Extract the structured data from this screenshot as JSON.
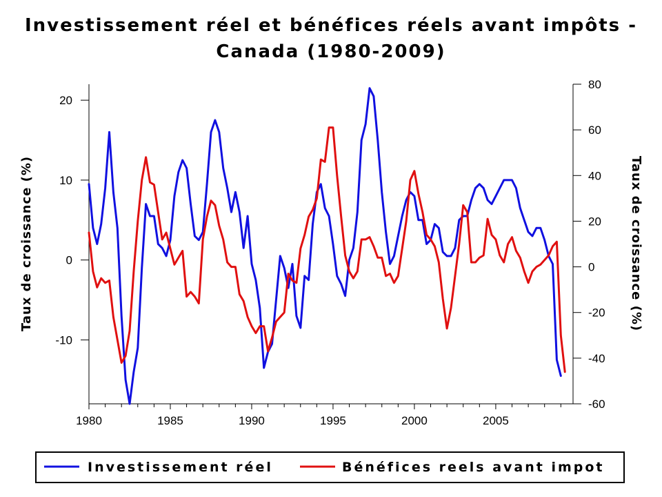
{
  "title_line1": "Investissement réel et bénéfices réels avant impôts -",
  "title_line2": "Canada (1980-2009)",
  "colors": {
    "series1": "#1010e0",
    "series2": "#e01010",
    "axis": "#000000"
  },
  "chart_data": {
    "type": "line",
    "title": "Investissement réel et bénéfices réels avant impôts - Canada (1980-2009)",
    "xlabel": "",
    "ylabel_left": "Taux de croissance (%)",
    "ylabel_right": "Taux de croissance (%)",
    "xlim": [
      1980,
      2009.75
    ],
    "ylim_left": [
      -18,
      22
    ],
    "ylim_right": [
      -60,
      80
    ],
    "x_ticks": [
      1980,
      1985,
      1990,
      1995,
      2000,
      2005
    ],
    "y_ticks_left": [
      -10,
      0,
      10,
      20
    ],
    "y_ticks_right": [
      -60,
      -40,
      -20,
      0,
      20,
      40,
      60,
      80
    ],
    "legend_position": "bottom",
    "grid": false,
    "series": [
      {
        "name": "Investissement réel",
        "axis": "left",
        "x_start": 1980.0,
        "x_step": 0.25,
        "values": [
          9.5,
          4.0,
          2.0,
          4.5,
          9.0,
          16.0,
          8.5,
          4.0,
          -7.0,
          -15.0,
          -18.0,
          -14.0,
          -11.0,
          -1.0,
          7.0,
          5.5,
          5.5,
          2.0,
          1.5,
          0.5,
          2.5,
          8.0,
          11.0,
          12.5,
          11.5,
          7.0,
          3.0,
          2.5,
          3.5,
          9.5,
          16.0,
          17.5,
          16.0,
          11.5,
          9.0,
          6.0,
          8.5,
          6.0,
          1.5,
          5.5,
          -0.5,
          -2.5,
          -6.0,
          -13.5,
          -11.5,
          -10.5,
          -5.0,
          0.5,
          -1.0,
          -3.5,
          -0.5,
          -7.0,
          -8.5,
          -2.0,
          -2.5,
          4.5,
          8.5,
          9.5,
          6.5,
          5.5,
          2.0,
          -2.0,
          -3.0,
          -4.5,
          0.0,
          1.5,
          6.0,
          15.0,
          17.0,
          21.5,
          20.5,
          15.0,
          8.5,
          3.5,
          -0.5,
          0.5,
          3.0,
          5.5,
          7.5,
          8.5,
          8.0,
          5.0,
          5.0,
          2.0,
          2.5,
          4.5,
          4.0,
          1.0,
          0.5,
          0.5,
          1.5,
          5.0,
          5.5,
          5.5,
          7.5,
          9.0,
          9.5,
          9.0,
          7.5,
          7.0,
          8.0,
          9.0,
          10.0,
          10.0,
          10.0,
          9.0,
          6.5,
          5.0,
          3.5,
          3.0,
          4.0,
          4.0,
          2.5,
          0.5,
          -0.5,
          -12.5,
          -14.5
        ]
      },
      {
        "name": "Bénéfices reels avant impot",
        "axis": "right",
        "x_start": 1980.0,
        "x_step": 0.25,
        "values": [
          15,
          -2,
          -9,
          -5,
          -7,
          -6,
          -22,
          -32,
          -42,
          -39,
          -28,
          -2,
          20,
          38,
          48,
          37,
          36,
          24,
          12,
          15,
          8,
          1,
          4,
          7,
          -13,
          -11,
          -13,
          -16,
          12,
          22,
          29,
          27,
          18,
          12,
          2,
          0,
          0,
          -12,
          -15,
          -22,
          -26,
          -29,
          -26,
          -26,
          -37,
          -31,
          -24,
          -22,
          -20,
          -3,
          -6,
          -7,
          8,
          14,
          22,
          25,
          30,
          47,
          46,
          61,
          61,
          40,
          22,
          5,
          -2,
          -5,
          -2,
          12,
          12,
          13,
          9,
          4,
          4,
          -4,
          -3,
          -7,
          -4,
          8,
          20,
          38,
          42,
          32,
          24,
          14,
          12,
          9,
          2,
          -14,
          -27,
          -18,
          -4,
          10,
          27,
          24,
          2,
          2,
          4,
          5,
          21,
          14,
          12,
          5,
          2,
          10,
          13,
          7,
          4,
          -2,
          -7,
          -2,
          0,
          1,
          3,
          5,
          9,
          11,
          -30,
          -46
        ]
      }
    ]
  },
  "legend": {
    "items": [
      {
        "label": "Investissement réel",
        "color": "#1010e0"
      },
      {
        "label": "Bénéfices reels avant impot",
        "color": "#e01010"
      }
    ]
  }
}
